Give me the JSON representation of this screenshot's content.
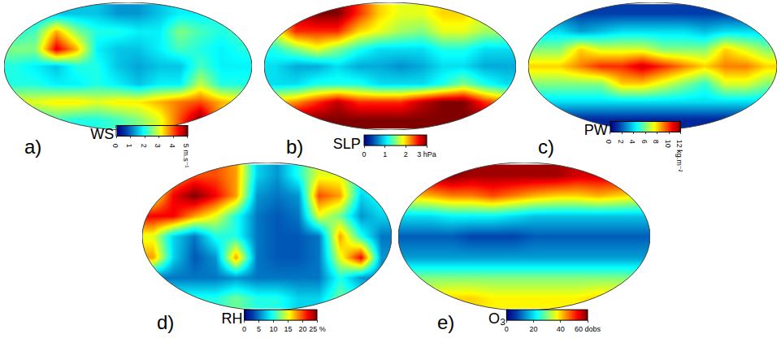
{
  "chart_data": [
    {
      "type": "heatmap",
      "label": "a)",
      "title": "WS",
      "tick_labels": false,
      "x": [
        15,
        45,
        75,
        105,
        135,
        165,
        195,
        225,
        255,
        285,
        315,
        345
      ],
      "y": [
        75,
        50,
        25,
        0,
        -25,
        -50,
        -75
      ],
      "xlim": [
        0,
        360
      ],
      "ylim": [
        -90,
        90
      ],
      "zlim": [
        0,
        5
      ],
      "zticks": [
        0,
        1,
        2,
        3,
        4,
        {
          "value": 5,
          "label": "5 m.s⁻¹"
        }
      ],
      "z": [
        [
          1.5,
          1.5,
          1.5,
          1.5,
          1.5,
          1.2,
          1.2,
          1.5,
          1.8,
          1.8,
          2.0,
          1.8
        ],
        [
          2.0,
          2.2,
          3.5,
          2.5,
          2.0,
          2.0,
          1.8,
          1.8,
          2.5,
          2.2,
          2.0,
          2.2
        ],
        [
          2.5,
          2.5,
          4.5,
          3.5,
          1.8,
          1.5,
          1.5,
          1.8,
          2.2,
          2.0,
          1.8,
          2.0
        ],
        [
          2.0,
          1.8,
          1.5,
          2.0,
          2.0,
          1.5,
          1.3,
          1.5,
          1.5,
          2.2,
          1.8,
          1.8
        ],
        [
          2.0,
          2.0,
          1.8,
          1.8,
          2.0,
          1.8,
          1.5,
          1.8,
          1.8,
          2.8,
          2.0,
          2.0
        ],
        [
          3.0,
          3.0,
          3.2,
          3.2,
          3.0,
          3.2,
          3.2,
          3.5,
          3.8,
          4.0,
          3.5,
          3.2
        ],
        [
          2.0,
          2.0,
          2.2,
          2.0,
          2.0,
          2.2,
          2.5,
          3.0,
          4.0,
          5.0,
          3.5,
          2.5
        ]
      ]
    },
    {
      "type": "heatmap",
      "label": "b)",
      "title": "SLP",
      "tick_labels": false,
      "x": [
        15,
        45,
        75,
        105,
        135,
        165,
        195,
        225,
        255,
        285,
        315,
        345
      ],
      "y": [
        75,
        50,
        25,
        0,
        -25,
        -50,
        -75
      ],
      "xlim": [
        0,
        360
      ],
      "ylim": [
        -90,
        90
      ],
      "zlim": [
        0,
        3
      ],
      "zticks": [
        0,
        1,
        2,
        {
          "value": 3,
          "label": "3 hPa"
        }
      ],
      "z": [
        [
          2.0,
          2.8,
          3.0,
          3.0,
          2.5,
          2.0,
          1.8,
          1.8,
          2.0,
          2.0,
          1.8,
          1.8
        ],
        [
          1.8,
          2.5,
          2.5,
          2.5,
          2.0,
          1.8,
          1.6,
          1.5,
          1.8,
          1.8,
          1.6,
          1.6
        ],
        [
          1.2,
          1.5,
          1.8,
          1.5,
          1.2,
          1.0,
          1.0,
          1.0,
          1.2,
          1.2,
          1.0,
          1.0
        ],
        [
          1.0,
          0.8,
          0.8,
          1.0,
          0.8,
          0.8,
          0.7,
          0.8,
          1.0,
          1.0,
          0.8,
          0.8
        ],
        [
          1.0,
          1.0,
          1.2,
          1.2,
          1.2,
          1.0,
          1.0,
          1.0,
          1.2,
          1.5,
          1.2,
          1.0
        ],
        [
          2.0,
          2.2,
          2.5,
          2.8,
          2.5,
          2.5,
          2.5,
          2.8,
          3.0,
          3.0,
          2.5,
          2.2
        ],
        [
          3.0,
          3.0,
          3.0,
          3.0,
          3.0,
          3.0,
          3.0,
          3.0,
          3.0,
          3.0,
          3.0,
          3.0
        ]
      ]
    },
    {
      "type": "heatmap",
      "label": "c)",
      "title": "PW",
      "tick_labels": false,
      "x": [
        15,
        45,
        75,
        105,
        135,
        165,
        195,
        225,
        255,
        285,
        315,
        345
      ],
      "y": [
        75,
        50,
        25,
        0,
        -25,
        -50,
        -75
      ],
      "xlim": [
        0,
        360
      ],
      "ylim": [
        -90,
        90
      ],
      "zlim": [
        0,
        12
      ],
      "zticks": [
        0,
        2,
        4,
        6,
        8,
        10,
        {
          "value": 12,
          "label": "12 kg.m⁻²"
        }
      ],
      "z": [
        [
          2,
          2,
          1.5,
          1.5,
          1.5,
          1.5,
          1.5,
          1.5,
          1.5,
          1.5,
          1.5,
          1.5
        ],
        [
          4,
          4,
          3,
          3.5,
          4,
          4,
          4,
          4,
          3.5,
          4,
          4,
          4
        ],
        [
          6,
          6,
          8,
          7,
          7,
          7,
          6,
          6,
          6,
          8,
          7,
          6
        ],
        [
          8,
          8,
          9,
          10,
          10,
          11,
          10,
          9,
          8,
          9,
          9,
          8
        ],
        [
          6,
          6,
          6,
          6,
          8,
          8,
          7,
          6,
          5,
          7,
          7,
          6
        ],
        [
          4,
          4,
          4,
          4,
          4,
          4,
          4,
          4,
          4,
          4,
          4,
          4
        ],
        [
          1,
          1,
          1,
          1,
          1,
          1,
          1,
          1,
          1,
          1,
          1,
          1
        ]
      ]
    },
    {
      "type": "heatmap",
      "label": "d)",
      "title": "RH",
      "tick_labels": false,
      "x": [
        15,
        45,
        75,
        105,
        135,
        165,
        195,
        225,
        255,
        285,
        315,
        345
      ],
      "y": [
        75,
        50,
        25,
        0,
        -25,
        -50,
        -75
      ],
      "xlim": [
        0,
        360
      ],
      "ylim": [
        -90,
        90
      ],
      "zlim": [
        0,
        25
      ],
      "zticks": [
        0,
        5,
        10,
        15,
        20,
        {
          "value": 25,
          "label": "25 %"
        }
      ],
      "z": [
        [
          12,
          18,
          20,
          20,
          18,
          8,
          6,
          10,
          15,
          15,
          10,
          8
        ],
        [
          15,
          22,
          25,
          22,
          18,
          6,
          5,
          6,
          20,
          18,
          8,
          10
        ],
        [
          22,
          22,
          18,
          15,
          10,
          5,
          4,
          5,
          15,
          12,
          6,
          8
        ],
        [
          15,
          8,
          5,
          10,
          10,
          5,
          4,
          4,
          5,
          18,
          10,
          5
        ],
        [
          18,
          8,
          4,
          6,
          18,
          5,
          4,
          4,
          5,
          15,
          22,
          6
        ],
        [
          5,
          5,
          5,
          5,
          6,
          5,
          5,
          5,
          5,
          10,
          6,
          5
        ],
        [
          10,
          10,
          10,
          10,
          12,
          10,
          10,
          8,
          8,
          12,
          10,
          10
        ]
      ]
    },
    {
      "type": "heatmap",
      "label": "e)",
      "title": "O₃",
      "tick_labels": false,
      "x": [
        15,
        45,
        75,
        105,
        135,
        165,
        195,
        225,
        255,
        285,
        315,
        345
      ],
      "y": [
        75,
        50,
        25,
        0,
        -25,
        -50,
        -75
      ],
      "xlim": [
        0,
        360
      ],
      "ylim": [
        -90,
        90
      ],
      "zlim": [
        0,
        60
      ],
      "zticks": [
        0,
        20,
        40,
        {
          "value": 60,
          "label": "60 dobs"
        }
      ],
      "z": [
        [
          55,
          58,
          60,
          58,
          58,
          58,
          58,
          58,
          55,
          55,
          55,
          55
        ],
        [
          40,
          42,
          45,
          45,
          48,
          45,
          42,
          40,
          40,
          42,
          40,
          38
        ],
        [
          20,
          20,
          22,
          22,
          22,
          20,
          18,
          18,
          18,
          18,
          18,
          18
        ],
        [
          10,
          10,
          10,
          8,
          8,
          8,
          10,
          10,
          10,
          10,
          10,
          10
        ],
        [
          15,
          15,
          15,
          15,
          15,
          15,
          15,
          15,
          15,
          15,
          15,
          15
        ],
        [
          30,
          30,
          30,
          30,
          30,
          30,
          30,
          30,
          30,
          30,
          30,
          30
        ],
        [
          35,
          38,
          40,
          40,
          38,
          38,
          38,
          38,
          38,
          40,
          40,
          35
        ]
      ]
    }
  ]
}
